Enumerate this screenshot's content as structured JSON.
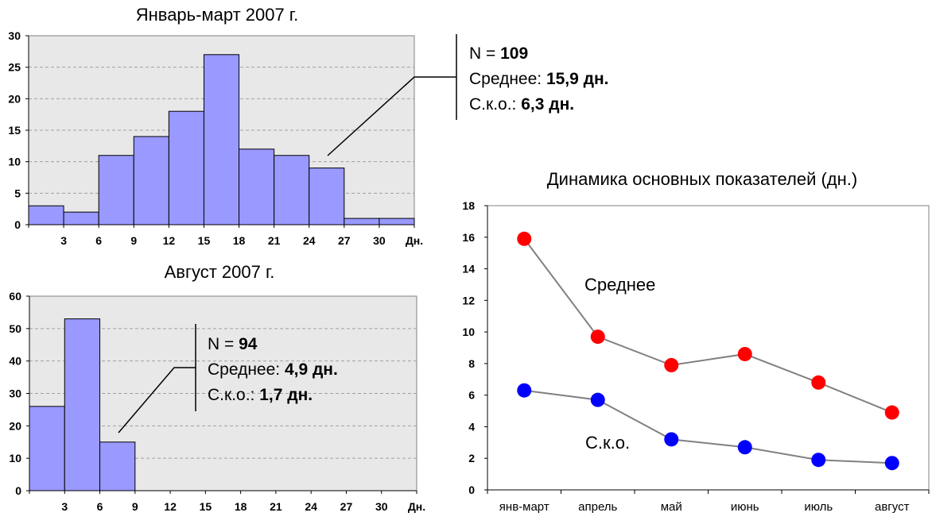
{
  "chart_data": [
    {
      "type": "bar",
      "title": "Январь-март 2007 г.",
      "xlabel": "",
      "ylabel": "",
      "x_unit": "Дн.",
      "bin_edges": [
        0,
        3,
        6,
        9,
        12,
        15,
        18,
        21,
        24,
        27,
        30,
        33
      ],
      "x_tick_labels": [
        "3",
        "6",
        "9",
        "12",
        "15",
        "18",
        "21",
        "24",
        "27",
        "30"
      ],
      "values": [
        3,
        2,
        11,
        14,
        18,
        27,
        12,
        11,
        9,
        1,
        1
      ],
      "ylim": [
        0,
        30
      ],
      "y_ticks": [
        0,
        5,
        10,
        15,
        20,
        25,
        30
      ],
      "grid": true,
      "bar_color": "#9999ff",
      "stats": {
        "n_label": "N = ",
        "n_value": "109",
        "mean_label": "Среднее: ",
        "mean_value": "15,9 дн.",
        "sd_label": "С.к.о.: ",
        "sd_value": "6,3 дн."
      }
    },
    {
      "type": "bar",
      "title": "Август 2007 г.",
      "xlabel": "",
      "ylabel": "",
      "x_unit": "Дн.",
      "bin_edges": [
        0,
        3,
        6,
        9,
        12,
        15,
        18,
        21,
        24,
        27,
        30,
        33
      ],
      "x_tick_labels": [
        "3",
        "6",
        "9",
        "12",
        "15",
        "18",
        "21",
        "24",
        "27",
        "30"
      ],
      "values": [
        26,
        53,
        15,
        0,
        0,
        0,
        0,
        0,
        0,
        0,
        0
      ],
      "ylim": [
        0,
        60
      ],
      "y_ticks": [
        0,
        10,
        20,
        30,
        40,
        50,
        60
      ],
      "grid": true,
      "bar_color": "#9999ff",
      "stats": {
        "n_label": "N = ",
        "n_value": "94",
        "mean_label": "Среднее: ",
        "mean_value": "4,9 дн.",
        "sd_label": "С.к.о.: ",
        "sd_value": "1,7 дн."
      }
    },
    {
      "type": "line",
      "title": "Динамика основных показателей (дн.)",
      "xlabel": "",
      "ylabel": "",
      "categories": [
        "янв-март",
        "апрель",
        "май",
        "июнь",
        "июль",
        "август"
      ],
      "ylim": [
        0,
        18
      ],
      "y_ticks": [
        0,
        2,
        4,
        6,
        8,
        10,
        12,
        14,
        16,
        18
      ],
      "grid": false,
      "series": [
        {
          "name": "Среднее",
          "values": [
            15.9,
            9.7,
            7.9,
            8.6,
            6.8,
            4.9
          ],
          "color": "#ff0000"
        },
        {
          "name": "С.к.о.",
          "values": [
            6.3,
            5.7,
            3.2,
            2.7,
            1.9,
            1.7
          ],
          "color": "#0000ff"
        }
      ],
      "line_color": "#808080"
    }
  ]
}
